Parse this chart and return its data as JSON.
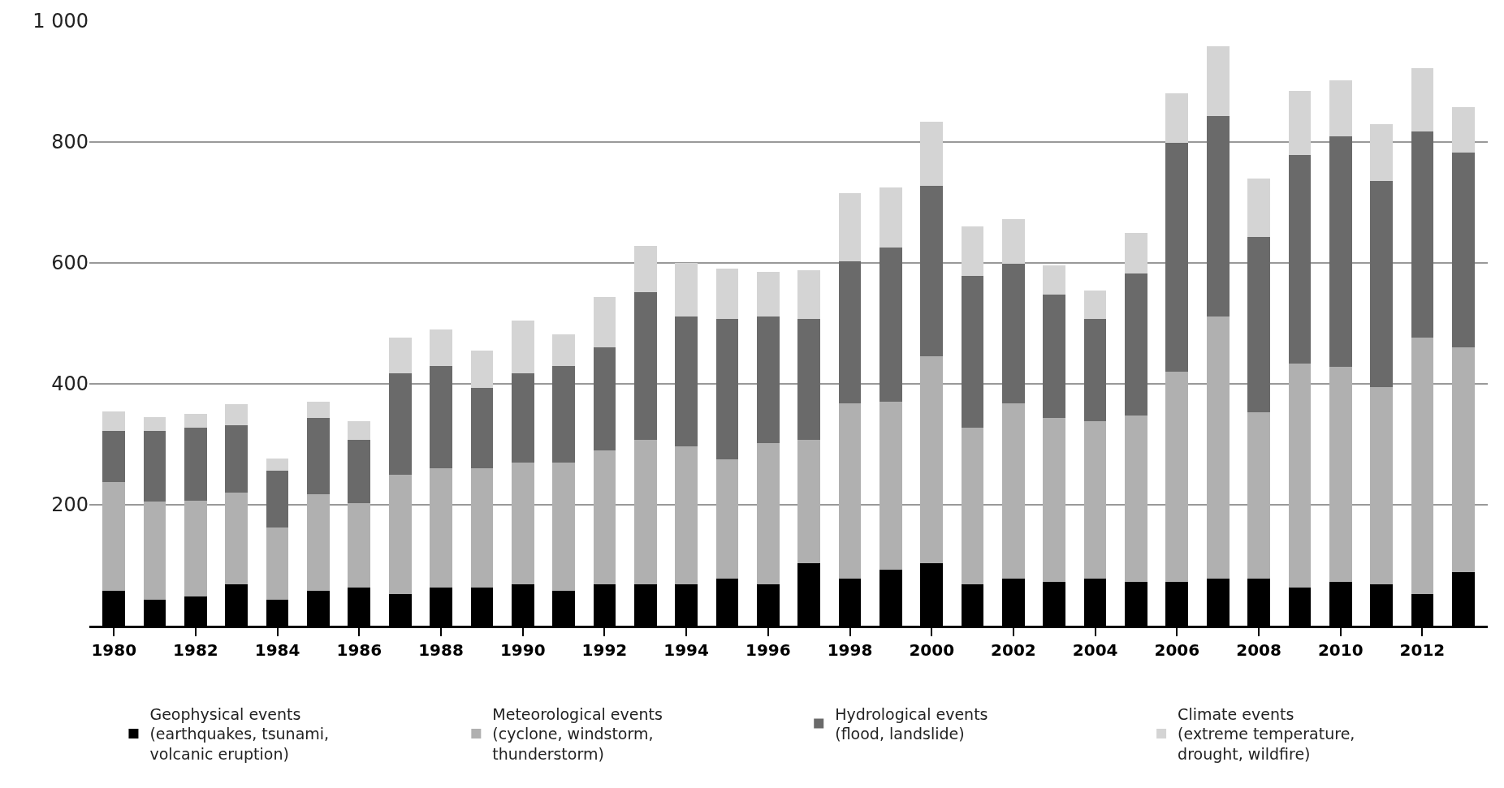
{
  "chart_data": {
    "type": "bar",
    "stacked": true,
    "categories": [
      "1980",
      null,
      "1982",
      null,
      "1984",
      null,
      "1986",
      null,
      "1988",
      null,
      "1990",
      null,
      "1992",
      null,
      "1994",
      null,
      "1996",
      null,
      "1998",
      null,
      "2000",
      null,
      "2002",
      null,
      "2004",
      null,
      "2006",
      null,
      "2008",
      null,
      "2010",
      null,
      "2012",
      null
    ],
    "series": [
      {
        "name": "Geophysical events\n(earthquakes, tsunami,\nvolcanic eruption)",
        "color": "#000000",
        "values": [
          58,
          43,
          48,
          68,
          43,
          58,
          63,
          53,
          63,
          63,
          68,
          58,
          68,
          68,
          68,
          78,
          68,
          103,
          78,
          93,
          103,
          68,
          78,
          73,
          78,
          73,
          73,
          78,
          78,
          63,
          73,
          68,
          53,
          88
        ]
      },
      {
        "name": "Meteorological events\n(cyclone, windstorm,\nthunderstorm)",
        "color": "#b0b0b0",
        "values": [
          179,
          162,
          159,
          152,
          119,
          160,
          140,
          197,
          197,
          197,
          202,
          212,
          222,
          239,
          229,
          197,
          234,
          204,
          290,
          277,
          342,
          259,
          290,
          270,
          260,
          274,
          347,
          434,
          275,
          370,
          355,
          327,
          424,
          372
        ]
      },
      {
        "name": "Hydrological events\n(flood, landslide)",
        "color": "#6a6a6a",
        "values": [
          85,
          117,
          120,
          112,
          94,
          125,
          104,
          168,
          170,
          133,
          148,
          160,
          170,
          245,
          215,
          232,
          210,
          200,
          235,
          255,
          282,
          251,
          230,
          204,
          169,
          236,
          378,
          331,
          290,
          345,
          382,
          340,
          341,
          323
        ]
      },
      {
        "name": "Climate events\n(extreme temperature,\ndrought, wildfire)",
        "color": "#d4d4d4",
        "values": [
          33,
          23,
          23,
          35,
          21,
          27,
          31,
          58,
          60,
          62,
          87,
          52,
          83,
          76,
          88,
          83,
          73,
          81,
          112,
          100,
          106,
          82,
          74,
          49,
          48,
          67,
          82,
          115,
          97,
          107,
          92,
          95,
          104,
          75
        ]
      }
    ],
    "ylim": [
      0,
      1000
    ],
    "yticks": [
      200,
      400,
      600,
      800,
      {
        "value": 1000,
        "label": "1 000"
      }
    ],
    "grid": "y",
    "legend": "bottom"
  }
}
